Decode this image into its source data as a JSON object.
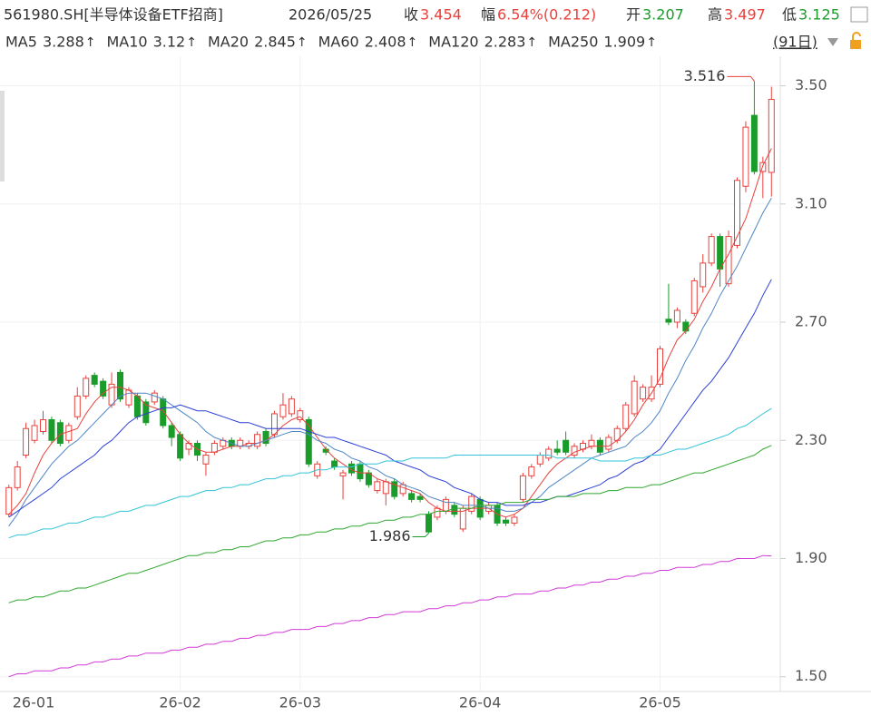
{
  "chart_data": {
    "type": "candlestick",
    "title": "561980.SH[半导体设备ETF招商]",
    "date": "2026/05/25",
    "header_labels": {
      "close": "收",
      "change": "幅",
      "open": "开",
      "high": "高",
      "low": "低"
    },
    "change_text": "6.54%(0.212)",
    "period": "(91日)",
    "categories": [
      "26-01",
      null,
      null,
      null,
      null,
      null,
      null,
      null,
      null,
      null,
      null,
      null,
      null,
      null,
      null,
      null,
      null,
      null,
      null,
      null,
      "26-02",
      null,
      null,
      null,
      null,
      null,
      null,
      null,
      null,
      null,
      null,
      null,
      null,
      null,
      "26-03",
      null,
      null,
      null,
      null,
      null,
      null,
      null,
      null,
      null,
      null,
      null,
      null,
      null,
      null,
      null,
      null,
      null,
      null,
      null,
      null,
      "26-04",
      null,
      null,
      null,
      null,
      null,
      null,
      null,
      null,
      null,
      null,
      null,
      null,
      null,
      null,
      null,
      null,
      null,
      null,
      null,
      null,
      "26-05",
      null,
      null,
      null,
      null,
      null,
      null,
      null,
      null,
      null,
      null,
      null,
      null,
      null
    ],
    "open": [
      2.05,
      2.14,
      2.25,
      2.3,
      2.33,
      2.37,
      2.36,
      2.3,
      2.38,
      2.45,
      2.52,
      2.5,
      2.42,
      2.53,
      2.42,
      2.45,
      2.43,
      2.43,
      2.44,
      2.35,
      2.32,
      2.27,
      2.29,
      2.22,
      2.26,
      2.28,
      2.3,
      2.28,
      2.28,
      2.28,
      2.33,
      2.32,
      2.38,
      2.39,
      2.37,
      2.37,
      2.18,
      2.27,
      2.23,
      2.18,
      2.22,
      2.22,
      2.19,
      2.13,
      2.12,
      2.16,
      2.12,
      2.12,
      2.11,
      2.05,
      2.04,
      2.06,
      2.08,
      2.0,
      2.06,
      2.1,
      2.06,
      2.08,
      2.03,
      2.02,
      2.1,
      2.18,
      2.22,
      2.24,
      2.27,
      2.3,
      2.25,
      2.27,
      2.28,
      2.3,
      2.27,
      2.3,
      2.34,
      2.39,
      2.44,
      2.44,
      2.49,
      2.71,
      2.7,
      2.7,
      2.73,
      2.82,
      2.9,
      2.99,
      2.83,
      2.96,
      3.16,
      3.4,
      3.21,
      3.207
    ],
    "high": [
      2.15,
      2.23,
      2.36,
      2.37,
      2.4,
      2.38,
      2.37,
      2.36,
      2.48,
      2.52,
      2.53,
      2.51,
      2.53,
      2.54,
      2.48,
      2.46,
      2.44,
      2.47,
      2.45,
      2.36,
      2.33,
      2.3,
      2.3,
      2.26,
      2.3,
      2.31,
      2.31,
      2.31,
      2.3,
      2.33,
      2.34,
      2.4,
      2.46,
      2.45,
      2.41,
      2.38,
      2.23,
      2.28,
      2.24,
      2.2,
      2.23,
      2.23,
      2.2,
      2.17,
      2.17,
      2.17,
      2.16,
      2.13,
      2.12,
      2.06,
      2.08,
      2.11,
      2.09,
      2.08,
      2.12,
      2.11,
      2.09,
      2.09,
      2.04,
      2.05,
      2.19,
      2.22,
      2.26,
      2.28,
      2.3,
      2.33,
      2.29,
      2.3,
      2.32,
      2.31,
      2.32,
      2.35,
      2.43,
      2.52,
      2.49,
      2.52,
      2.62,
      2.83,
      2.75,
      2.71,
      2.85,
      2.93,
      3.0,
      3.0,
      3.01,
      3.19,
      3.38,
      3.516,
      3.26,
      3.497
    ],
    "low": [
      2.04,
      2.13,
      2.24,
      2.29,
      2.32,
      2.29,
      2.28,
      2.29,
      2.37,
      2.44,
      2.48,
      2.44,
      2.41,
      2.43,
      2.41,
      2.37,
      2.35,
      2.42,
      2.34,
      2.28,
      2.23,
      2.25,
      2.23,
      2.18,
      2.25,
      2.27,
      2.27,
      2.27,
      2.27,
      2.27,
      2.28,
      2.31,
      2.37,
      2.38,
      2.36,
      2.21,
      2.17,
      2.25,
      2.2,
      2.1,
      2.18,
      2.16,
      2.14,
      2.12,
      2.08,
      2.1,
      2.11,
      2.09,
      2.09,
      1.986,
      2.03,
      2.05,
      2.04,
      1.99,
      2.05,
      2.03,
      2.05,
      2.01,
      2.01,
      2.01,
      2.09,
      2.17,
      2.21,
      2.23,
      2.25,
      2.25,
      2.24,
      2.26,
      2.27,
      2.25,
      2.26,
      2.29,
      2.33,
      2.38,
      2.43,
      2.43,
      2.48,
      2.69,
      2.68,
      2.66,
      2.72,
      2.8,
      2.89,
      2.82,
      2.82,
      2.95,
      3.14,
      3.2,
      3.12,
      3.125
    ],
    "close": [
      2.14,
      2.21,
      2.34,
      2.35,
      2.37,
      2.3,
      2.29,
      2.35,
      2.45,
      2.51,
      2.49,
      2.45,
      2.49,
      2.44,
      2.47,
      2.38,
      2.36,
      2.46,
      2.35,
      2.31,
      2.24,
      2.29,
      2.25,
      2.25,
      2.29,
      2.3,
      2.28,
      2.3,
      2.29,
      2.32,
      2.29,
      2.39,
      2.42,
      2.44,
      2.4,
      2.22,
      2.22,
      2.26,
      2.21,
      2.19,
      2.19,
      2.17,
      2.15,
      2.16,
      2.16,
      2.11,
      2.15,
      2.1,
      2.1,
      1.99,
      2.07,
      2.1,
      2.05,
      2.07,
      2.11,
      2.04,
      2.08,
      2.02,
      2.02,
      2.04,
      2.18,
      2.21,
      2.25,
      2.27,
      2.26,
      2.26,
      2.28,
      2.29,
      2.3,
      2.26,
      2.31,
      2.34,
      2.42,
      2.5,
      2.48,
      2.48,
      2.61,
      2.7,
      2.74,
      2.67,
      2.84,
      2.9,
      2.99,
      2.88,
      2.99,
      3.18,
      3.36,
      3.21,
      3.24,
      3.454
    ],
    "up_color": "#e8413c",
    "down_color": "#1a9c2a",
    "overlays": [
      {
        "name": "MA5",
        "color": "#e8413c",
        "trend": "↑",
        "values": [
          2.05,
          2.08,
          2.12,
          2.19,
          2.25,
          2.29,
          2.32,
          2.33,
          2.34,
          2.39,
          2.43,
          2.46,
          2.48,
          2.48,
          2.47,
          2.45,
          2.42,
          2.41,
          2.4,
          2.36,
          2.32,
          2.29,
          2.27,
          2.26,
          2.26,
          2.27,
          2.28,
          2.28,
          2.29,
          2.29,
          2.3,
          2.32,
          2.35,
          2.37,
          2.38,
          2.35,
          2.31,
          2.27,
          2.24,
          2.22,
          2.2,
          2.19,
          2.19,
          2.17,
          2.16,
          2.15,
          2.14,
          2.13,
          2.12,
          2.09,
          2.07,
          2.06,
          2.06,
          2.06,
          2.07,
          2.07,
          2.07,
          2.05,
          2.04,
          2.05,
          2.07,
          2.11,
          2.15,
          2.19,
          2.22,
          2.24,
          2.26,
          2.27,
          2.28,
          2.28,
          2.28,
          2.3,
          2.33,
          2.37,
          2.42,
          2.46,
          2.51,
          2.58,
          2.64,
          2.67,
          2.71,
          2.77,
          2.82,
          2.88,
          2.93,
          2.99,
          3.05,
          3.14,
          3.23,
          3.288
        ]
      },
      {
        "name": "MA10",
        "color": "#4f86c6",
        "trend": "↑",
        "values": [
          2.01,
          2.05,
          2.1,
          2.14,
          2.18,
          2.22,
          2.25,
          2.28,
          2.3,
          2.33,
          2.36,
          2.39,
          2.42,
          2.45,
          2.46,
          2.46,
          2.46,
          2.45,
          2.44,
          2.42,
          2.4,
          2.38,
          2.36,
          2.33,
          2.31,
          2.3,
          2.29,
          2.28,
          2.28,
          2.29,
          2.3,
          2.31,
          2.32,
          2.33,
          2.33,
          2.32,
          2.3,
          2.29,
          2.27,
          2.26,
          2.24,
          2.23,
          2.21,
          2.2,
          2.18,
          2.17,
          2.15,
          2.14,
          2.13,
          2.11,
          2.1,
          2.09,
          2.09,
          2.08,
          2.08,
          2.08,
          2.07,
          2.07,
          2.06,
          2.06,
          2.07,
          2.09,
          2.11,
          2.14,
          2.16,
          2.18,
          2.2,
          2.22,
          2.24,
          2.25,
          2.26,
          2.27,
          2.28,
          2.31,
          2.33,
          2.36,
          2.4,
          2.46,
          2.51,
          2.57,
          2.62,
          2.68,
          2.73,
          2.79,
          2.84,
          2.89,
          2.95,
          3.01,
          3.07,
          3.12
        ]
      },
      {
        "name": "MA20",
        "color": "#2b3fd6",
        "trend": "↑",
        "values": [
          2.04,
          2.06,
          2.08,
          2.1,
          2.12,
          2.14,
          2.17,
          2.19,
          2.21,
          2.23,
          2.25,
          2.28,
          2.3,
          2.33,
          2.36,
          2.38,
          2.39,
          2.4,
          2.41,
          2.41,
          2.42,
          2.41,
          2.4,
          2.4,
          2.39,
          2.38,
          2.37,
          2.36,
          2.36,
          2.35,
          2.34,
          2.34,
          2.34,
          2.34,
          2.34,
          2.33,
          2.32,
          2.31,
          2.31,
          2.3,
          2.29,
          2.28,
          2.27,
          2.26,
          2.25,
          2.23,
          2.22,
          2.21,
          2.2,
          2.18,
          2.17,
          2.16,
          2.14,
          2.13,
          2.12,
          2.1,
          2.09,
          2.09,
          2.08,
          2.08,
          2.08,
          2.09,
          2.09,
          2.1,
          2.11,
          2.11,
          2.12,
          2.13,
          2.14,
          2.15,
          2.17,
          2.18,
          2.2,
          2.22,
          2.23,
          2.25,
          2.27,
          2.31,
          2.35,
          2.39,
          2.43,
          2.47,
          2.5,
          2.54,
          2.58,
          2.63,
          2.68,
          2.73,
          2.79,
          2.845
        ]
      },
      {
        "name": "MA60",
        "color": "#33c3d8",
        "trend": "↑",
        "values": [
          1.97,
          1.98,
          1.98,
          1.99,
          2.0,
          2.0,
          2.01,
          2.02,
          2.02,
          2.03,
          2.04,
          2.04,
          2.05,
          2.06,
          2.06,
          2.07,
          2.08,
          2.08,
          2.09,
          2.1,
          2.11,
          2.11,
          2.12,
          2.13,
          2.13,
          2.14,
          2.14,
          2.15,
          2.15,
          2.16,
          2.17,
          2.17,
          2.18,
          2.18,
          2.19,
          2.19,
          2.2,
          2.2,
          2.21,
          2.21,
          2.21,
          2.22,
          2.22,
          2.22,
          2.23,
          2.23,
          2.23,
          2.24,
          2.24,
          2.24,
          2.24,
          2.24,
          2.25,
          2.25,
          2.25,
          2.25,
          2.25,
          2.25,
          2.25,
          2.25,
          2.25,
          2.25,
          2.25,
          2.25,
          2.24,
          2.24,
          2.24,
          2.24,
          2.24,
          2.23,
          2.23,
          2.23,
          2.23,
          2.24,
          2.24,
          2.25,
          2.25,
          2.26,
          2.27,
          2.27,
          2.28,
          2.29,
          2.3,
          2.31,
          2.32,
          2.34,
          2.35,
          2.37,
          2.39,
          2.408
        ]
      },
      {
        "name": "MA120",
        "color": "#2fa82f",
        "trend": "↑",
        "values": [
          1.75,
          1.76,
          1.76,
          1.77,
          1.77,
          1.78,
          1.79,
          1.79,
          1.8,
          1.8,
          1.81,
          1.82,
          1.83,
          1.84,
          1.85,
          1.85,
          1.86,
          1.87,
          1.88,
          1.89,
          1.9,
          1.91,
          1.91,
          1.92,
          1.92,
          1.93,
          1.93,
          1.94,
          1.94,
          1.95,
          1.96,
          1.96,
          1.97,
          1.97,
          1.98,
          1.98,
          1.99,
          1.99,
          2.0,
          2.0,
          2.01,
          2.01,
          2.02,
          2.02,
          2.03,
          2.03,
          2.04,
          2.04,
          2.05,
          2.05,
          2.06,
          2.06,
          2.07,
          2.07,
          2.07,
          2.08,
          2.08,
          2.08,
          2.09,
          2.09,
          2.09,
          2.1,
          2.1,
          2.1,
          2.11,
          2.11,
          2.11,
          2.12,
          2.12,
          2.12,
          2.13,
          2.13,
          2.14,
          2.14,
          2.14,
          2.15,
          2.15,
          2.16,
          2.17,
          2.18,
          2.19,
          2.19,
          2.2,
          2.21,
          2.22,
          2.23,
          2.24,
          2.25,
          2.27,
          2.283
        ]
      },
      {
        "name": "MA250",
        "color": "#d23ad8",
        "trend": "↑",
        "values": [
          1.5,
          1.51,
          1.51,
          1.52,
          1.52,
          1.52,
          1.53,
          1.53,
          1.54,
          1.54,
          1.55,
          1.55,
          1.56,
          1.56,
          1.57,
          1.57,
          1.58,
          1.58,
          1.58,
          1.59,
          1.59,
          1.6,
          1.6,
          1.61,
          1.61,
          1.62,
          1.62,
          1.63,
          1.63,
          1.64,
          1.64,
          1.65,
          1.65,
          1.66,
          1.66,
          1.66,
          1.67,
          1.67,
          1.68,
          1.68,
          1.69,
          1.69,
          1.7,
          1.7,
          1.71,
          1.71,
          1.72,
          1.72,
          1.72,
          1.73,
          1.73,
          1.74,
          1.74,
          1.75,
          1.75,
          1.76,
          1.76,
          1.77,
          1.77,
          1.78,
          1.78,
          1.78,
          1.79,
          1.79,
          1.8,
          1.8,
          1.81,
          1.81,
          1.82,
          1.82,
          1.83,
          1.83,
          1.84,
          1.84,
          1.85,
          1.85,
          1.86,
          1.86,
          1.87,
          1.87,
          1.87,
          1.88,
          1.88,
          1.89,
          1.89,
          1.9,
          1.9,
          1.9,
          1.91,
          1.909
        ]
      }
    ],
    "ylim": [
      1.45,
      3.6
    ],
    "yticks": [
      {
        "value": 1.5,
        "label": "1.50"
      },
      {
        "value": 1.9,
        "label": "1.90"
      },
      {
        "value": 2.3,
        "label": "2.30"
      },
      {
        "value": 2.7,
        "label": "2.70"
      },
      {
        "value": 3.1,
        "label": "3.10"
      },
      {
        "value": 3.5,
        "label": "3.50"
      }
    ],
    "grid": true
  }
}
